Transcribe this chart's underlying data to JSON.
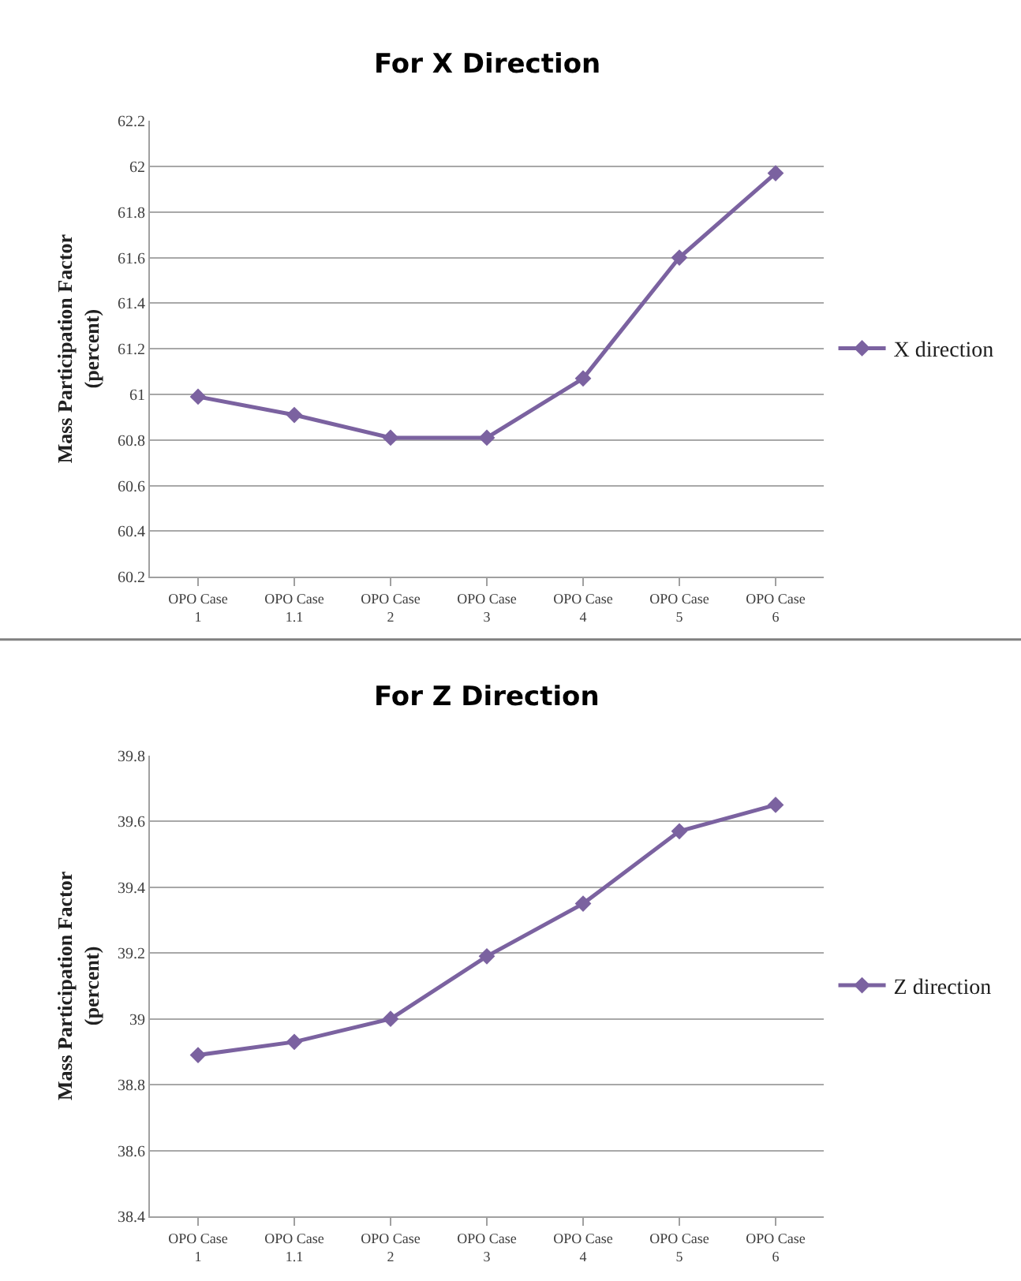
{
  "chart_data": [
    {
      "type": "line",
      "title": "For X Direction",
      "ylabel": "Mass Participation Factor (percent)",
      "categories": [
        "OPO Case 1",
        "OPO Case 1.1",
        "OPO Case 2",
        "OPO Case 3",
        "OPO Case 4",
        "OPO Case 5",
        "OPO Case 6"
      ],
      "series": [
        {
          "name": "X direction",
          "color": "#7b62a0",
          "values": [
            60.99,
            60.91,
            60.81,
            60.81,
            61.07,
            61.6,
            61.97
          ]
        }
      ],
      "ylim": [
        60.2,
        62.2
      ],
      "yticks": [
        60.2,
        60.4,
        60.6,
        60.8,
        61,
        61.2,
        61.4,
        61.6,
        61.8,
        62,
        62.2
      ],
      "grid": "y",
      "legend": "right",
      "marker": "diamond",
      "line_style": "solid"
    },
    {
      "type": "line",
      "title": "For Z Direction",
      "ylabel": "Mass Participation Factor (percent)",
      "categories": [
        "OPO Case 1",
        "OPO Case 1.1",
        "OPO Case 2",
        "OPO Case 3",
        "OPO Case 4",
        "OPO Case 5",
        "OPO Case 6"
      ],
      "series": [
        {
          "name": "Z direction",
          "color": "#7b62a0",
          "values": [
            38.89,
            38.93,
            39.0,
            39.19,
            39.35,
            39.57,
            39.65
          ]
        }
      ],
      "ylim": [
        38.4,
        39.8
      ],
      "yticks": [
        38.4,
        38.6,
        38.8,
        39,
        39.2,
        39.4,
        39.6,
        39.8
      ],
      "grid": "y",
      "legend": "right",
      "marker": "diamond",
      "line_style": "solid"
    }
  ]
}
